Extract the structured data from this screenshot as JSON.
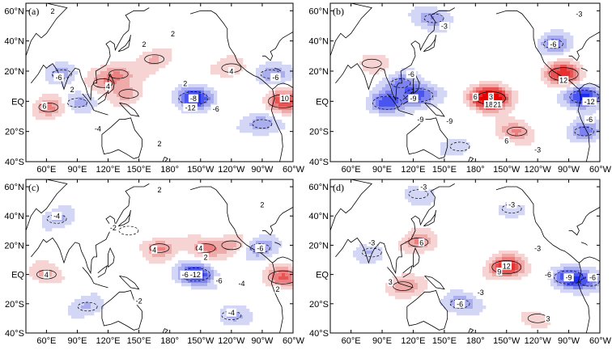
{
  "chart_data": [
    {
      "type": "heatmap",
      "panel_label": "(a)",
      "xticks": [
        "60°E",
        "90°E",
        "120°E",
        "150°E",
        "180°",
        "150°W",
        "120°W",
        "90°W",
        "60°W"
      ],
      "yticks": [
        "60°N",
        "40°N",
        "20°N",
        "EQ",
        "20°S",
        "40°S"
      ],
      "contour_interval": 2,
      "features": [
        {
          "lon": 62,
          "lat": -4,
          "value": 6
        },
        {
          "lon": 115,
          "lat": 12,
          "value": 4
        },
        {
          "lon": 130,
          "lat": 18,
          "value": 6
        },
        {
          "lon": 140,
          "lat": 5,
          "value": 4
        },
        {
          "lon": 165,
          "lat": 28,
          "value": 4
        },
        {
          "lon": 240,
          "lat": 22,
          "value": 4
        },
        {
          "lon": 290,
          "lat": 0,
          "value": 10
        },
        {
          "lon": 203,
          "lat": 2,
          "value": -12
        },
        {
          "lon": 278,
          "lat": 18,
          "value": -6
        },
        {
          "lon": 270,
          "lat": -15,
          "value": -6
        },
        {
          "lon": 90,
          "lat": -1,
          "value": -4
        },
        {
          "lon": 75,
          "lat": 18,
          "value": -4
        }
      ],
      "contour_labels": [
        {
          "lon": 66,
          "lat": 60,
          "text": "2"
        },
        {
          "lon": 72,
          "lat": 16,
          "text": "-6"
        },
        {
          "lon": 85,
          "lat": 8,
          "text": "2"
        },
        {
          "lon": 58,
          "lat": -3,
          "text": "6"
        },
        {
          "lon": 120,
          "lat": 10,
          "text": "4"
        },
        {
          "lon": 155,
          "lat": 38,
          "text": "2"
        },
        {
          "lon": 183,
          "lat": 45,
          "text": "2"
        },
        {
          "lon": 195,
          "lat": 12,
          "text": "2"
        },
        {
          "lon": 203,
          "lat": 2,
          "text": "-8"
        },
        {
          "lon": 200,
          "lat": -4,
          "text": "-12"
        },
        {
          "lon": 225,
          "lat": -5,
          "text": "-6"
        },
        {
          "lon": 240,
          "lat": 20,
          "text": "4"
        },
        {
          "lon": 283,
          "lat": 16,
          "text": "-6"
        },
        {
          "lon": 292,
          "lat": 2,
          "text": "10"
        },
        {
          "lon": 110,
          "lat": -18,
          "text": "-4"
        },
        {
          "lon": 170,
          "lat": -28,
          "text": "2"
        }
      ]
    },
    {
      "type": "heatmap",
      "panel_label": "(b)",
      "xticks": [
        "60°E",
        "90°E",
        "120°E",
        "150°E",
        "180°",
        "150°W",
        "120°W",
        "90°W",
        "60°W"
      ],
      "yticks": [
        "60°N",
        "40°N",
        "20°N",
        "EQ",
        "20°S",
        "40°S"
      ],
      "contour_interval": 3,
      "features": [
        {
          "lon": 195,
          "lat": 2,
          "value": 21
        },
        {
          "lon": 265,
          "lat": 18,
          "value": 12
        },
        {
          "lon": 220,
          "lat": -20,
          "value": 6
        },
        {
          "lon": 108,
          "lat": 12,
          "value": -6
        },
        {
          "lon": 125,
          "lat": 4,
          "value": -9
        },
        {
          "lon": 95,
          "lat": -1,
          "value": -9
        },
        {
          "lon": 285,
          "lat": 3,
          "value": -12
        },
        {
          "lon": 285,
          "lat": -20,
          "value": -6
        },
        {
          "lon": 255,
          "lat": 38,
          "value": -6
        },
        {
          "lon": 140,
          "lat": 55,
          "value": -6
        },
        {
          "lon": 165,
          "lat": -30,
          "value": -3
        },
        {
          "lon": 80,
          "lat": 25,
          "value": 3
        }
      ],
      "contour_labels": [
        {
          "lon": 280,
          "lat": 58,
          "text": "-3"
        },
        {
          "lon": 150,
          "lat": 50,
          "text": "-3"
        },
        {
          "lon": 255,
          "lat": 38,
          "text": "-6"
        },
        {
          "lon": 118,
          "lat": 18,
          "text": "-6"
        },
        {
          "lon": 120,
          "lat": 2,
          "text": "-9"
        },
        {
          "lon": 180,
          "lat": 3,
          "text": "6"
        },
        {
          "lon": 195,
          "lat": 3,
          "text": "3"
        },
        {
          "lon": 193,
          "lat": -2,
          "text": "18"
        },
        {
          "lon": 201,
          "lat": -2,
          "text": "21"
        },
        {
          "lon": 265,
          "lat": 14,
          "text": "12"
        },
        {
          "lon": 290,
          "lat": 0,
          "text": "-12"
        },
        {
          "lon": 290,
          "lat": -12,
          "text": "-6"
        },
        {
          "lon": 127,
          "lat": -12,
          "text": "-9"
        },
        {
          "lon": 155,
          "lat": -13,
          "text": "-9"
        },
        {
          "lon": 210,
          "lat": -26,
          "text": "6"
        },
        {
          "lon": 240,
          "lat": -32,
          "text": "-3"
        }
      ]
    },
    {
      "type": "heatmap",
      "panel_label": "(c)",
      "xticks": [
        "60°E",
        "90°E",
        "120°E",
        "150°E",
        "180°",
        "150°W",
        "120°W",
        "90°W",
        "60°W"
      ],
      "yticks": [
        "60°N",
        "40°N",
        "20°N",
        "EQ",
        "20°S",
        "40°S"
      ],
      "contour_interval": 2,
      "features": [
        {
          "lon": 60,
          "lat": 0,
          "value": 4
        },
        {
          "lon": 170,
          "lat": 18,
          "value": 6
        },
        {
          "lon": 215,
          "lat": 18,
          "value": 6
        },
        {
          "lon": 240,
          "lat": 20,
          "value": 4
        },
        {
          "lon": 290,
          "lat": -2,
          "value": 8
        },
        {
          "lon": 205,
          "lat": 0,
          "value": -12
        },
        {
          "lon": 70,
          "lat": 38,
          "value": -4
        },
        {
          "lon": 140,
          "lat": 30,
          "value": -2
        },
        {
          "lon": 268,
          "lat": 18,
          "value": -6
        },
        {
          "lon": 240,
          "lat": -28,
          "value": -4
        },
        {
          "lon": 100,
          "lat": -22,
          "value": -4
        }
      ],
      "contour_labels": [
        {
          "lon": 70,
          "lat": 40,
          "text": "-4"
        },
        {
          "lon": 125,
          "lat": 32,
          "text": "-2"
        },
        {
          "lon": 170,
          "lat": 58,
          "text": "2"
        },
        {
          "lon": 270,
          "lat": 48,
          "text": "2"
        },
        {
          "lon": 165,
          "lat": 17,
          "text": "4"
        },
        {
          "lon": 210,
          "lat": 18,
          "text": "4"
        },
        {
          "lon": 215,
          "lat": 12,
          "text": "2"
        },
        {
          "lon": 205,
          "lat": 0,
          "text": "-12"
        },
        {
          "lon": 195,
          "lat": 0,
          "text": "-6"
        },
        {
          "lon": 228,
          "lat": -4,
          "text": "-6"
        },
        {
          "lon": 250,
          "lat": -6,
          "text": "-4"
        },
        {
          "lon": 268,
          "lat": 18,
          "text": "-6"
        },
        {
          "lon": 60,
          "lat": 0,
          "text": "4"
        },
        {
          "lon": 150,
          "lat": -18,
          "text": "-2"
        },
        {
          "lon": 240,
          "lat": -26,
          "text": "-4"
        },
        {
          "lon": 285,
          "lat": -10,
          "text": "2"
        }
      ]
    },
    {
      "type": "heatmap",
      "panel_label": "(d)",
      "xticks": [
        "60°E",
        "90°E",
        "120°E",
        "150°E",
        "180°",
        "150°W",
        "120°W",
        "90°W",
        "60°W"
      ],
      "yticks": [
        "60°N",
        "40°N",
        "20°N",
        "EQ",
        "20°S",
        "40°S"
      ],
      "contour_interval": 3,
      "features": [
        {
          "lon": 210,
          "lat": 5,
          "value": 12
        },
        {
          "lon": 125,
          "lat": 22,
          "value": 6
        },
        {
          "lon": 110,
          "lat": -8,
          "value": 6
        },
        {
          "lon": 270,
          "lat": -2,
          "value": -9
        },
        {
          "lon": 290,
          "lat": -5,
          "value": -6
        },
        {
          "lon": 165,
          "lat": -20,
          "value": -6
        },
        {
          "lon": 125,
          "lat": 55,
          "value": -3
        },
        {
          "lon": 215,
          "lat": 45,
          "value": -3
        },
        {
          "lon": 240,
          "lat": -30,
          "value": 3
        },
        {
          "lon": 80,
          "lat": 15,
          "value": -3
        }
      ],
      "contour_labels": [
        {
          "lon": 128,
          "lat": 22,
          "text": "6"
        },
        {
          "lon": 215,
          "lat": 48,
          "text": "-3"
        },
        {
          "lon": 240,
          "lat": 18,
          "text": "-3"
        },
        {
          "lon": 210,
          "lat": 6,
          "text": "12"
        },
        {
          "lon": 203,
          "lat": 2,
          "text": "9"
        },
        {
          "lon": 250,
          "lat": 0,
          "text": "-6"
        },
        {
          "lon": 270,
          "lat": -2,
          "text": "-9"
        },
        {
          "lon": 293,
          "lat": -2,
          "text": "-6"
        },
        {
          "lon": 98,
          "lat": -5,
          "text": "3"
        },
        {
          "lon": 165,
          "lat": -20,
          "text": "-6"
        },
        {
          "lon": 185,
          "lat": -12,
          "text": "-3"
        },
        {
          "lon": 250,
          "lat": -30,
          "text": "3"
        },
        {
          "lon": 80,
          "lat": 22,
          "text": "-3"
        },
        {
          "lon": 130,
          "lat": 60,
          "text": "-3"
        }
      ]
    }
  ]
}
